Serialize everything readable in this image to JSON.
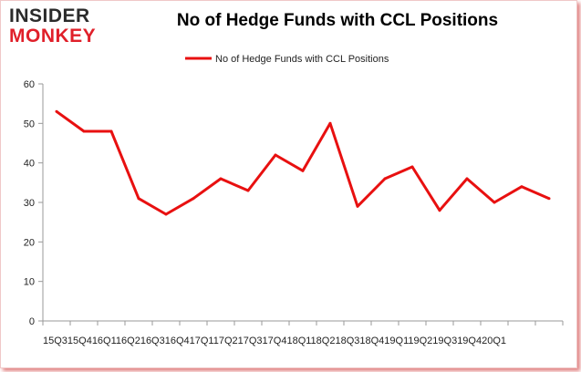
{
  "logo": {
    "top": "INSIDER",
    "bottom": "MONKEY"
  },
  "colors": {
    "line": "#e81010",
    "axis": "#999999",
    "grid": "#d9d9d9"
  },
  "chart_data": {
    "type": "line",
    "title": "No of Hedge Funds with CCL Positions",
    "xlabel": "",
    "ylabel": "",
    "ylim": [
      0,
      60
    ],
    "yticks": [
      0,
      10,
      20,
      30,
      40,
      50,
      60
    ],
    "grid": false,
    "legend": "top-center",
    "x_tick_text": "15Q315Q416Q116Q216Q316Q417Q117Q217Q317Q418Q118Q218Q318Q419Q119Q219Q319Q420Q1",
    "categories": [
      "15Q3",
      "15Q4",
      "16Q1",
      "16Q2",
      "16Q3",
      "16Q4",
      "17Q1",
      "17Q2",
      "17Q3",
      "17Q4",
      "18Q1",
      "18Q2",
      "18Q3",
      "18Q4",
      "19Q1",
      "19Q2",
      "19Q3",
      "19Q4",
      "20Q1"
    ],
    "series": [
      {
        "name": "No of Hedge Funds with CCL Positions",
        "values": [
          53,
          48,
          48,
          31,
          27,
          31,
          36,
          33,
          42,
          38,
          50,
          29,
          36,
          39,
          28,
          36,
          30,
          34,
          31
        ]
      }
    ]
  }
}
